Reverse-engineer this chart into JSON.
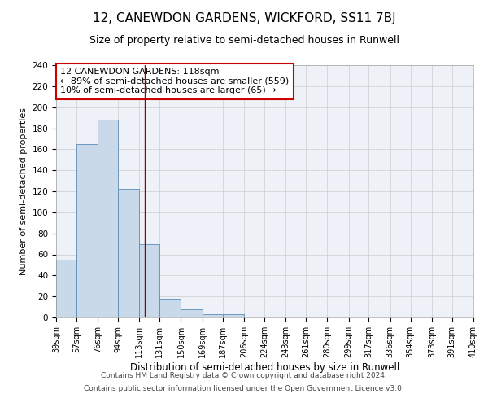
{
  "title": "12, CANEWDON GARDENS, WICKFORD, SS11 7BJ",
  "subtitle": "Size of property relative to semi-detached houses in Runwell",
  "xlabel": "Distribution of semi-detached houses by size in Runwell",
  "ylabel": "Number of semi-detached properties",
  "footer_line1": "Contains HM Land Registry data © Crown copyright and database right 2024.",
  "footer_line2": "Contains public sector information licensed under the Open Government Licence v3.0.",
  "property_label": "12 CANEWDON GARDENS: 118sqm",
  "annotation_line1": "← 89% of semi-detached houses are smaller (559)",
  "annotation_line2": "10% of semi-detached houses are larger (65) →",
  "bin_edges": [
    39,
    57,
    76,
    94,
    113,
    131,
    150,
    169,
    187,
    206,
    224,
    243,
    261,
    280,
    299,
    317,
    336,
    354,
    373,
    391,
    410
  ],
  "bin_counts": [
    55,
    165,
    188,
    122,
    70,
    18,
    8,
    3,
    3,
    0,
    0,
    0,
    0,
    0,
    0,
    0,
    0,
    0,
    0,
    0
  ],
  "bar_facecolor": "#c9d9ea",
  "bar_edgecolor": "#5b8db8",
  "vline_color": "#990000",
  "vline_x": 118,
  "annotation_box_edgecolor": "#cc0000",
  "annotation_box_facecolor": "#ffffff",
  "grid_color": "#cccccc",
  "background_color": "#eef2f8",
  "ylim": [
    0,
    240
  ],
  "yticks": [
    0,
    20,
    40,
    60,
    80,
    100,
    120,
    140,
    160,
    180,
    200,
    220,
    240
  ],
  "tick_labels": [
    "39sqm",
    "57sqm",
    "76sqm",
    "94sqm",
    "113sqm",
    "131sqm",
    "150sqm",
    "169sqm",
    "187sqm",
    "206sqm",
    "224sqm",
    "243sqm",
    "261sqm",
    "280sqm",
    "299sqm",
    "317sqm",
    "336sqm",
    "354sqm",
    "373sqm",
    "391sqm",
    "410sqm"
  ],
  "title_fontsize": 11,
  "subtitle_fontsize": 9,
  "xlabel_fontsize": 8.5,
  "ylabel_fontsize": 8,
  "xtick_fontsize": 7,
  "ytick_fontsize": 7.5,
  "annotation_fontsize": 8,
  "footer_fontsize": 6.5
}
